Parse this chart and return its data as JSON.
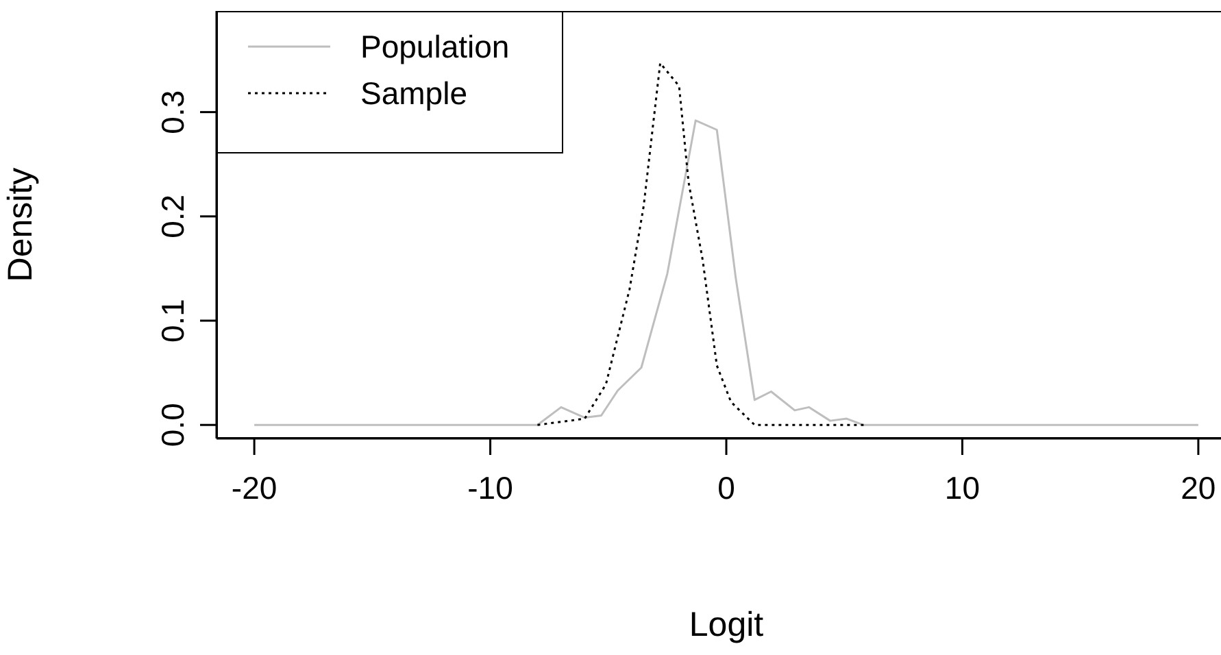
{
  "chart_data": {
    "type": "line",
    "xlabel": "Logit",
    "ylabel": "Density",
    "xlim": [
      -21.6,
      21.6
    ],
    "ylim": [
      -0.013,
      0.397
    ],
    "xticks": [
      -20,
      -10,
      0,
      10,
      20
    ],
    "yticks": [
      {
        "value": 0,
        "label": "0.0"
      },
      {
        "value": 0.1,
        "label": "0.1"
      },
      {
        "value": 0.2,
        "label": "0.2"
      },
      {
        "value": 0.3,
        "label": "0.3"
      }
    ],
    "legend": "top left",
    "marker": "none",
    "series": [
      {
        "name": "Population",
        "color": "#bebebe",
        "line_style": "solid",
        "x": [
          -20,
          -8,
          -7,
          -6,
          -5.3,
          -4.6,
          -3.6,
          -2.5,
          -1.3,
          -0.4,
          0.4,
          1.2,
          1.9,
          2.9,
          3.5,
          4.4,
          5.1,
          5.8,
          20
        ],
        "values": [
          0,
          0,
          0.017,
          0.007,
          0.009,
          0.033,
          0.055,
          0.145,
          0.292,
          0.283,
          0.141,
          0.024,
          0.032,
          0.014,
          0.017,
          0.004,
          0.006,
          0,
          0
        ]
      },
      {
        "name": "Sample",
        "color": "#000000",
        "line_style": "dotted",
        "x": [
          -8,
          -6,
          -5.1,
          -4.1,
          -3.5,
          -2.8,
          -2,
          -1.6,
          -1,
          -0.4,
          0.2,
          1.2,
          5.9
        ],
        "values": [
          0,
          0.006,
          0.039,
          0.13,
          0.21,
          0.347,
          0.325,
          0.233,
          0.158,
          0.057,
          0.022,
          0,
          0
        ]
      }
    ]
  }
}
